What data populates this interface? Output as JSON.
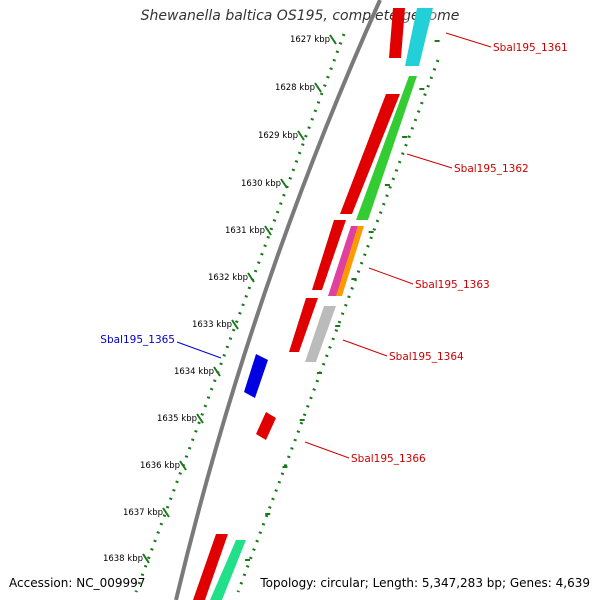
{
  "title": "Shewanella baltica OS195, complete genome",
  "accession_text": "Accession: NC_009997",
  "summary_text": "Topology: circular; Length: 5,347,283 bp; Genes: 4,639",
  "scale_ticks": [
    {
      "label": "1627 kbp"
    },
    {
      "label": "1628 kbp"
    },
    {
      "label": "1629 kbp"
    },
    {
      "label": "1630 kbp"
    },
    {
      "label": "1631 kbp"
    },
    {
      "label": "1632 kbp"
    },
    {
      "label": "1633 kbp"
    },
    {
      "label": "1634 kbp"
    },
    {
      "label": "1635 kbp"
    },
    {
      "label": "1636 kbp"
    },
    {
      "label": "1637 kbp"
    },
    {
      "label": "1638 kbp"
    }
  ],
  "gene_labels": [
    {
      "name": "Sbal195_1361",
      "color": "#cc0000"
    },
    {
      "name": "Sbal195_1362",
      "color": "#cc0000"
    },
    {
      "name": "Sbal195_1363",
      "color": "#cc0000"
    },
    {
      "name": "Sbal195_1364",
      "color": "#cc0000"
    },
    {
      "name": "Sbal195_1366",
      "color": "#cc0000"
    },
    {
      "name": "Sbal195_1365",
      "color": "#0000cc"
    }
  ],
  "colors": {
    "red": "#e00000",
    "green": "#33cc33",
    "cyan": "#22d0d8",
    "blue": "#0000e0",
    "grey": "#bbbbbb",
    "magenta": "#e040a0",
    "orange": "#ff9900",
    "mint": "#22e08a",
    "backbone": "#7a7a7a",
    "scale": "#1a7a1a"
  }
}
